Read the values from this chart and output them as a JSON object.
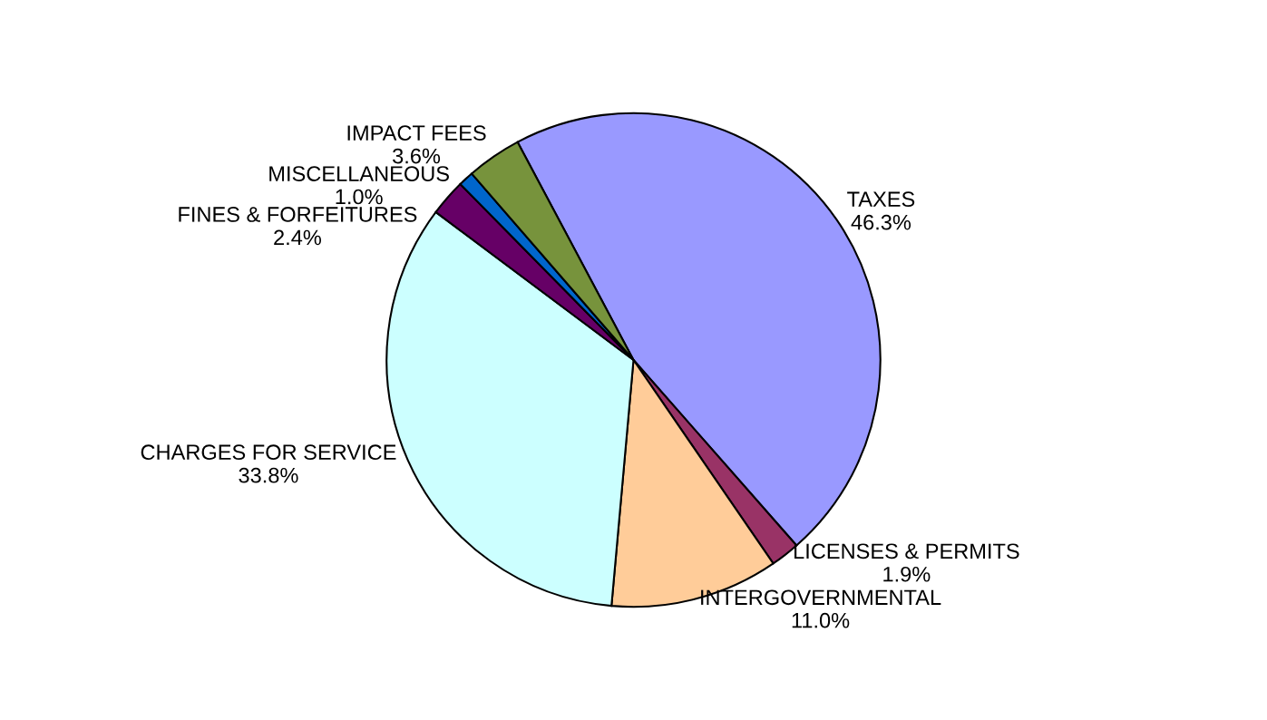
{
  "chart_data": {
    "type": "pie",
    "categories": [
      "TAXES",
      "LICENSES & PERMITS",
      "INTERGOVERNMENTAL",
      "CHARGES FOR SERVICE",
      "FINES & FORFEITURES",
      "MISCELLANEOUS",
      "IMPACT FEES"
    ],
    "values": [
      46.3,
      1.9,
      11.0,
      33.8,
      2.4,
      1.0,
      3.6
    ],
    "value_labels": [
      "46.3%",
      "1.9%",
      "11.0%",
      "33.8%",
      "2.4%",
      "1.0%",
      "3.6%"
    ],
    "colors": [
      "#9999ff",
      "#993366",
      "#ffcc99",
      "#ccffff",
      "#660066",
      "#0066cc",
      "#77933c"
    ]
  }
}
